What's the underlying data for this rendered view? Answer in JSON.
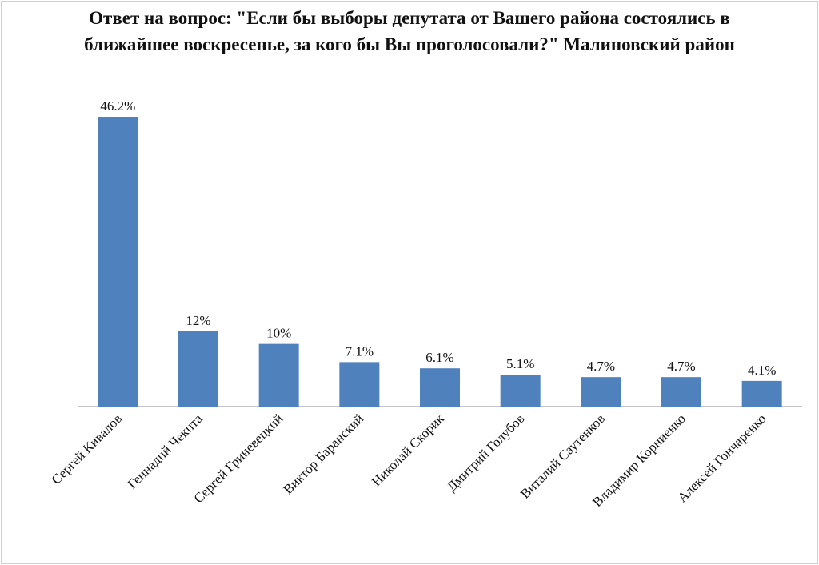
{
  "chart_data": {
    "type": "bar",
    "title": "Ответ на вопрос: \"Если бы выборы депутата от Вашего района состоялись в ближайшее воскресенье, за кого бы Вы проголосовали?\" Малиновский район",
    "categories": [
      "Сергей Кивалов",
      "Геннадий Чекита",
      "Сергей Гриневецкий",
      "Виктор Баранский",
      "Николай Скорик",
      "Дмитрий Голубов",
      "Виталий Саутенков",
      "Владимир Корниенко",
      "Алексей Гончаренко"
    ],
    "values": [
      46.2,
      12,
      10,
      7.1,
      6.1,
      5.1,
      4.7,
      4.7,
      4.1
    ],
    "value_labels": [
      "46.2%",
      "12%",
      "10%",
      "7.1%",
      "6.1%",
      "5.1%",
      "4.7%",
      "4.7%",
      "4.1%"
    ],
    "color": "#4f81bd"
  }
}
